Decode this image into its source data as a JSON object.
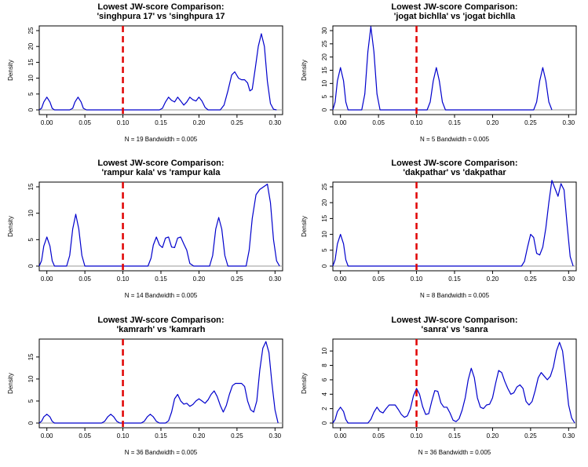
{
  "chart_data": [
    {
      "type": "line",
      "title": "Lowest JW-score Comparison:",
      "subtitle": "'singhpura 17' vs 'singhpura 17",
      "xlabel": "N = 19   Bandwidth = 0.005",
      "ylabel": "Density",
      "xlim": [
        -0.01,
        0.31
      ],
      "ylim": [
        0,
        25
      ],
      "xticks": [
        "0.00",
        "0.05",
        "0.10",
        "0.15",
        "0.20",
        "0.25",
        "0.30"
      ],
      "yticks": [
        "0",
        "5",
        "10",
        "15",
        "20",
        "25"
      ],
      "cutoff": 0.1,
      "series": [
        {
          "x": [
            -0.01,
            -0.007,
            -0.004,
            0.0,
            0.004,
            0.007,
            0.01,
            0.03,
            0.034,
            0.037,
            0.041,
            0.045,
            0.048,
            0.052,
            0.148,
            0.152,
            0.156,
            0.16,
            0.164,
            0.168,
            0.172,
            0.176,
            0.18,
            0.184,
            0.188,
            0.192,
            0.196,
            0.2,
            0.204,
            0.208,
            0.212,
            0.216,
            0.22,
            0.228,
            0.233,
            0.238,
            0.243,
            0.247,
            0.252,
            0.256,
            0.26,
            0.264,
            0.267,
            0.27,
            0.274,
            0.278,
            0.282,
            0.286,
            0.29,
            0.294,
            0.298,
            0.302
          ],
          "y": [
            0,
            0.5,
            2.5,
            4.0,
            2.5,
            0.5,
            0,
            0,
            0.5,
            2.5,
            4.0,
            2.5,
            0.5,
            0,
            0,
            0.5,
            2.5,
            4.0,
            3.0,
            2.5,
            4.0,
            2.8,
            1.5,
            2.5,
            4.0,
            3.2,
            2.8,
            4.0,
            2.8,
            0.8,
            0,
            0,
            0,
            0,
            1.5,
            6.0,
            11.0,
            12.0,
            10.0,
            9.5,
            9.5,
            8.5,
            6.0,
            6.5,
            13.0,
            20.0,
            24.0,
            20.0,
            9.0,
            2.0,
            0.2,
            0
          ]
        }
      ]
    },
    {
      "type": "line",
      "title": "Lowest JW-score Comparison:",
      "subtitle": "'jogat bichlla' vs 'jogat bichlla",
      "xlabel": "N = 5   Bandwidth = 0.005",
      "ylabel": "Density",
      "xlim": [
        -0.01,
        0.31
      ],
      "ylim": [
        0,
        30
      ],
      "xticks": [
        "0.00",
        "0.05",
        "0.10",
        "0.15",
        "0.20",
        "0.25",
        "0.30"
      ],
      "yticks": [
        "0",
        "5",
        "10",
        "15",
        "20",
        "25",
        "30"
      ],
      "cutoff": 0.1,
      "series": [
        {
          "x": [
            -0.01,
            -0.007,
            -0.004,
            0.0,
            0.004,
            0.007,
            0.01,
            0.028,
            0.032,
            0.036,
            0.04,
            0.044,
            0.048,
            0.052,
            0.114,
            0.118,
            0.122,
            0.126,
            0.13,
            0.134,
            0.138,
            0.254,
            0.258,
            0.262,
            0.266,
            0.27,
            0.274,
            0.278
          ],
          "y": [
            0,
            3.0,
            11.0,
            16.0,
            11.0,
            3.0,
            0,
            0,
            6.0,
            22.0,
            31.5,
            22.0,
            6.0,
            0,
            0,
            3.0,
            11.0,
            16.0,
            11.0,
            3.0,
            0,
            0,
            3.0,
            11.0,
            16.0,
            11.0,
            3.0,
            0
          ]
        }
      ]
    },
    {
      "type": "line",
      "title": "Lowest JW-score Comparison:",
      "subtitle": "'rampur kala' vs 'rampur kala",
      "xlabel": "N = 14   Bandwidth = 0.005",
      "ylabel": "Density",
      "xlim": [
        -0.01,
        0.31
      ],
      "ylim": [
        0,
        15
      ],
      "xticks": [
        "0.00",
        "0.05",
        "0.10",
        "0.15",
        "0.20",
        "0.25",
        "0.30"
      ],
      "yticks": [
        "0",
        "5",
        "10",
        "15"
      ],
      "cutoff": 0.1,
      "series": [
        {
          "x": [
            -0.01,
            -0.007,
            -0.004,
            0.0,
            0.004,
            0.007,
            0.01,
            0.026,
            0.03,
            0.034,
            0.038,
            0.042,
            0.046,
            0.05,
            0.133,
            0.137,
            0.14,
            0.144,
            0.148,
            0.152,
            0.156,
            0.16,
            0.164,
            0.168,
            0.172,
            0.176,
            0.18,
            0.184,
            0.188,
            0.193,
            0.214,
            0.218,
            0.222,
            0.226,
            0.23,
            0.234,
            0.238,
            0.262,
            0.266,
            0.27,
            0.275,
            0.28,
            0.285,
            0.29,
            0.294,
            0.298,
            0.302,
            0.306
          ],
          "y": [
            0,
            1.0,
            3.8,
            5.5,
            3.8,
            1.0,
            0,
            0,
            2.0,
            7.0,
            9.8,
            7.0,
            2.0,
            0,
            0,
            1.5,
            4.0,
            5.5,
            4.0,
            3.5,
            5.3,
            5.5,
            3.6,
            3.5,
            5.3,
            5.5,
            4.2,
            3.0,
            0.5,
            0,
            0,
            2.0,
            7.0,
            9.2,
            7.0,
            2.0,
            0,
            0,
            3.0,
            9.0,
            13.5,
            14.5,
            15.0,
            15.5,
            12.0,
            5.0,
            1.0,
            0
          ]
        }
      ]
    },
    {
      "type": "line",
      "title": "Lowest JW-score Comparison:",
      "subtitle": "'dakpathar' vs 'dakpathar",
      "xlabel": "N = 8   Bandwidth = 0.005",
      "ylabel": "Density",
      "xlim": [
        -0.01,
        0.31
      ],
      "ylim": [
        0,
        25
      ],
      "xticks": [
        "0.00",
        "0.05",
        "0.10",
        "0.15",
        "0.20",
        "0.25",
        "0.30"
      ],
      "yticks": [
        "0",
        "5",
        "10",
        "15",
        "20",
        "25"
      ],
      "cutoff": 0.1,
      "series": [
        {
          "x": [
            -0.01,
            -0.007,
            -0.004,
            0.0,
            0.004,
            0.007,
            0.01,
            0.238,
            0.242,
            0.246,
            0.25,
            0.254,
            0.258,
            0.262,
            0.266,
            0.27,
            0.274,
            0.278,
            0.282,
            0.286,
            0.29,
            0.294,
            0.298,
            0.302,
            0.306
          ],
          "y": [
            0,
            2.0,
            7.0,
            10.0,
            7.0,
            2.0,
            0,
            0,
            1.5,
            6.0,
            10.0,
            9.0,
            4.0,
            3.5,
            6.0,
            12.0,
            20.0,
            27.0,
            24.5,
            22.0,
            26.0,
            24.0,
            13.0,
            3.0,
            0
          ]
        }
      ]
    },
    {
      "type": "line",
      "title": "Lowest JW-score Comparison:",
      "subtitle": "'kamrarh' vs 'kamrarh",
      "xlabel": "N = 36   Bandwidth = 0.005",
      "ylabel": "Density",
      "xlim": [
        -0.01,
        0.31
      ],
      "ylim": [
        0,
        18
      ],
      "xticks": [
        "0.00",
        "0.05",
        "0.10",
        "0.15",
        "0.20",
        "0.25",
        "0.30"
      ],
      "yticks": [
        "0",
        "5",
        "10",
        "15"
      ],
      "cutoff": 0.1,
      "series": [
        {
          "x": [
            -0.01,
            -0.007,
            -0.004,
            0.0,
            0.004,
            0.007,
            0.01,
            0.072,
            0.076,
            0.08,
            0.084,
            0.088,
            0.092,
            0.096,
            0.124,
            0.128,
            0.132,
            0.136,
            0.14,
            0.144,
            0.148,
            0.156,
            0.16,
            0.164,
            0.168,
            0.172,
            0.176,
            0.18,
            0.184,
            0.188,
            0.192,
            0.196,
            0.2,
            0.204,
            0.208,
            0.212,
            0.216,
            0.22,
            0.224,
            0.228,
            0.232,
            0.236,
            0.24,
            0.244,
            0.248,
            0.252,
            0.256,
            0.26,
            0.264,
            0.268,
            0.272,
            0.276,
            0.28,
            0.284,
            0.288,
            0.292,
            0.296,
            0.3,
            0.304
          ],
          "y": [
            0,
            0.4,
            1.4,
            2.0,
            1.4,
            0.4,
            0,
            0,
            0.4,
            1.4,
            2.0,
            1.4,
            0.4,
            0,
            0,
            0.4,
            1.4,
            2.0,
            1.4,
            0.4,
            0,
            0,
            0.5,
            2.5,
            5.5,
            6.5,
            5.0,
            4.3,
            4.5,
            3.8,
            4.2,
            5.0,
            5.5,
            5.0,
            4.5,
            5.3,
            6.5,
            7.3,
            6.0,
            4.0,
            2.5,
            4.0,
            6.5,
            8.5,
            9.0,
            9.0,
            9.0,
            8.3,
            5.0,
            3.0,
            2.5,
            5.0,
            12.0,
            17.0,
            18.5,
            16.0,
            9.0,
            3.0,
            0
          ]
        }
      ]
    },
    {
      "type": "line",
      "title": "Lowest JW-score Comparison:",
      "subtitle": "'sanra' vs 'sanra",
      "xlabel": "N = 36   Bandwidth = 0.005",
      "ylabel": "Density",
      "xlim": [
        -0.01,
        0.31
      ],
      "ylim": [
        0,
        11
      ],
      "xticks": [
        "0.00",
        "0.05",
        "0.10",
        "0.15",
        "0.20",
        "0.25",
        "0.30"
      ],
      "yticks": [
        "0",
        "2",
        "4",
        "6",
        "8",
        "10"
      ],
      "cutoff": 0.1,
      "series": [
        {
          "x": [
            -0.01,
            -0.007,
            -0.004,
            0.0,
            0.004,
            0.007,
            0.01,
            0.036,
            0.04,
            0.044,
            0.048,
            0.052,
            0.056,
            0.06,
            0.064,
            0.068,
            0.072,
            0.076,
            0.08,
            0.084,
            0.088,
            0.092,
            0.096,
            0.1,
            0.104,
            0.108,
            0.112,
            0.116,
            0.12,
            0.124,
            0.128,
            0.132,
            0.136,
            0.14,
            0.144,
            0.148,
            0.152,
            0.156,
            0.16,
            0.164,
            0.168,
            0.172,
            0.176,
            0.18,
            0.184,
            0.188,
            0.192,
            0.196,
            0.2,
            0.204,
            0.208,
            0.212,
            0.216,
            0.22,
            0.224,
            0.228,
            0.232,
            0.236,
            0.24,
            0.244,
            0.248,
            0.252,
            0.256,
            0.26,
            0.264,
            0.268,
            0.272,
            0.276,
            0.28,
            0.284,
            0.288,
            0.292,
            0.296,
            0.3,
            0.304,
            0.308
          ],
          "y": [
            0,
            0.5,
            1.6,
            2.2,
            1.6,
            0.5,
            0,
            0,
            0.5,
            1.5,
            2.2,
            1.6,
            1.4,
            2.0,
            2.5,
            2.5,
            2.5,
            1.9,
            1.2,
            0.8,
            1.0,
            2.0,
            3.8,
            4.8,
            4.0,
            2.3,
            1.2,
            1.3,
            3.0,
            4.5,
            4.4,
            2.8,
            2.2,
            2.2,
            1.4,
            0.4,
            0.2,
            0.6,
            1.8,
            3.5,
            6.0,
            7.6,
            6.3,
            3.5,
            2.2,
            2.0,
            2.5,
            2.6,
            3.5,
            5.5,
            7.3,
            7.0,
            5.8,
            4.8,
            4.0,
            4.2,
            5.0,
            5.3,
            4.8,
            3.0,
            2.5,
            3.0,
            4.5,
            6.3,
            7.0,
            6.5,
            6.0,
            6.5,
            7.8,
            10.0,
            11.2,
            10.0,
            6.5,
            2.5,
            0.7,
            0
          ]
        }
      ]
    }
  ]
}
